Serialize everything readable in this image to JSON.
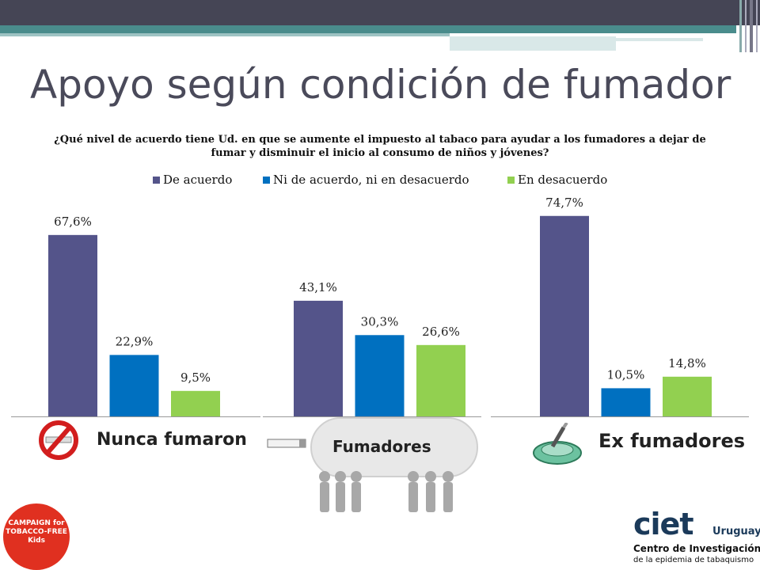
{
  "slide": {
    "title": "Apoyo según condición de fumador",
    "question": "¿Qué nivel de acuerdo tiene Ud. en que se aumente el impuesto al tabaco para ayudar a los fumadores a dejar de fumar y disminuir el inicio al consumo de niños y jóvenes?"
  },
  "captions": {
    "nunca": "Nunca fumaron",
    "fumadores": "Fumadores",
    "ex": "Ex fumadores"
  },
  "logos": {
    "campaign_text": "CAMPAIGN for TOBACCO-FREE Kids",
    "ciet_name": "ciet",
    "ciet_country": "Uruguay",
    "ciet_line1": "Centro de Investigación",
    "ciet_line2": "de la epidemia de tabaquismo"
  },
  "colors": {
    "background": "#ffffff",
    "top_bar": "#454555",
    "accent_teal": "#4a8c8c",
    "title_text": "#4a4a5a"
  },
  "icons": [
    "no-smoking-icon",
    "cigarette-icon",
    "ashtray-icon"
  ],
  "chart_data": {
    "type": "bar",
    "title": "",
    "categories": [
      "",
      "",
      ""
    ],
    "series": [
      {
        "name": "De acuerdo",
        "color": "#54548a",
        "values": [
          67.6,
          43.1,
          74.7
        ],
        "labels": [
          "67,6%",
          "43,1%",
          "74,7%"
        ]
      },
      {
        "name": "Ni de acuerdo, ni en desacuerdo",
        "color": "#0070c0",
        "values": [
          22.9,
          30.3,
          10.5
        ],
        "labels": [
          "22,9%",
          "30,3%",
          "10,5%"
        ]
      },
      {
        "name": "En desacuerdo",
        "color": "#92d050",
        "values": [
          9.5,
          26.6,
          14.8
        ],
        "labels": [
          "9,5%",
          "26,6%",
          "14,8%"
        ]
      }
    ],
    "ylim": [
      0,
      80
    ],
    "xlabel": "",
    "ylabel": "",
    "grid": false,
    "legend": "top-center"
  }
}
